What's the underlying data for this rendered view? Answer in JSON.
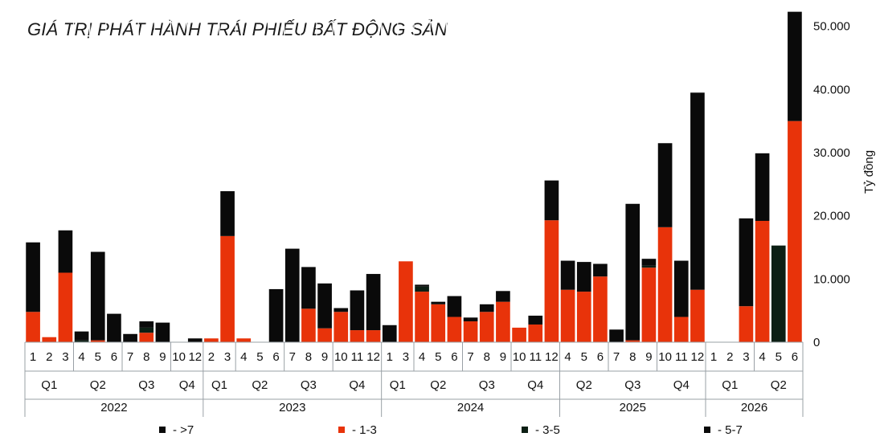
{
  "chart_data": {
    "type": "bar",
    "stacked": true,
    "title": "GIÁ TRỊ PHÁT HÀNH TRÁI PHIẾU BẤT ĐỘNG SẢN",
    "ylabel": "Tỷ đồng",
    "ylim": [
      0,
      52000
    ],
    "yticks": [
      "0",
      "10.000",
      "20.000",
      "30.000",
      "40.000",
      "50.000"
    ],
    "ytick_values": [
      0,
      10000,
      20000,
      30000,
      40000,
      50000
    ],
    "y_axis_side": "right",
    "grid": false,
    "legend_position": "bottom",
    "colors": {
      "gt7": "#0a0a0a",
      "1_3": "#e8330a",
      "3_5": "#0c1f14",
      "5_7": "#0a0a0a",
      "separator": "#a8d0a8"
    },
    "categories": [
      "1",
      "2",
      "3",
      "4",
      "5",
      "6",
      "7",
      "8",
      "9",
      "10",
      "12",
      "2",
      "3",
      "4",
      "5",
      "6",
      "7",
      "8",
      "9",
      "10",
      "11",
      "12",
      "1",
      "3",
      "4",
      "5",
      "6",
      "7",
      "8",
      "9",
      "10",
      "11",
      "12",
      "4",
      "5",
      "6",
      "7",
      "8",
      "9",
      "10",
      "11",
      "12",
      "1",
      "2",
      "3",
      "4",
      "5",
      "6"
    ],
    "quarters": [
      {
        "label": "Q1",
        "n": 3
      },
      {
        "label": "Q2",
        "n": 3
      },
      {
        "label": "Q3",
        "n": 3
      },
      {
        "label": "Q4",
        "n": 2
      },
      {
        "label": "Q1",
        "n": 2
      },
      {
        "label": "Q2",
        "n": 3
      },
      {
        "label": "Q3",
        "n": 3
      },
      {
        "label": "Q4",
        "n": 3
      },
      {
        "label": "Q1",
        "n": 2
      },
      {
        "label": "Q2",
        "n": 3
      },
      {
        "label": "Q3",
        "n": 3
      },
      {
        "label": "Q4",
        "n": 3
      },
      {
        "label": "Q2",
        "n": 3
      },
      {
        "label": "Q3",
        "n": 3
      },
      {
        "label": "Q4",
        "n": 3
      },
      {
        "label": "Q1",
        "n": 3
      },
      {
        "label": "Q2",
        "n": 3
      }
    ],
    "years": [
      {
        "label": "2022",
        "n": 11
      },
      {
        "label": "2023",
        "n": 11
      },
      {
        "label": "2024",
        "n": 11
      },
      {
        "label": "2025",
        "n": 9
      },
      {
        "label": "2026",
        "n": 6
      }
    ],
    "series": [
      {
        "name": "- >7",
        "key": "gt7",
        "values": [
          0,
          0,
          0,
          0,
          0,
          0,
          0,
          0,
          0,
          0,
          0,
          0,
          0,
          0,
          0,
          0,
          0,
          0,
          0,
          0,
          0,
          0,
          0,
          0,
          0,
          0,
          0,
          0,
          0,
          0,
          0,
          0,
          0,
          0,
          0,
          0,
          0,
          0,
          0,
          0,
          0,
          0,
          0,
          0,
          0,
          0,
          0,
          0
        ]
      },
      {
        "name": "- 1-3",
        "key": "1_3",
        "values": [
          4800,
          800,
          11000,
          0,
          300,
          0,
          0,
          1500,
          0,
          0,
          0,
          600,
          16800,
          600,
          0,
          0,
          0,
          5300,
          2200,
          4800,
          1900,
          1900,
          0,
          12800,
          8000,
          6000,
          4000,
          3300,
          4800,
          6400,
          2300,
          2800,
          19300,
          8300,
          8000,
          10400,
          0,
          300,
          11800,
          18200,
          4000,
          8300,
          0,
          0,
          5700,
          19200,
          0,
          35000
        ]
      },
      {
        "name": "- 3-5",
        "key": "3_5",
        "values": [
          0,
          0,
          0,
          300,
          0,
          0,
          0,
          800,
          0,
          0,
          0,
          0,
          0,
          0,
          0,
          0,
          0,
          0,
          0,
          0,
          0,
          0,
          0,
          0,
          800,
          0,
          0,
          0,
          0,
          0,
          0,
          0,
          0,
          0,
          0,
          0,
          0,
          0,
          300,
          0,
          0,
          0,
          0,
          0,
          0,
          0,
          15300,
          0
        ]
      },
      {
        "name": "- 5-7",
        "key": "5_7",
        "values": [
          11000,
          0,
          6700,
          1400,
          14000,
          4500,
          1300,
          1000,
          3100,
          0,
          600,
          0,
          7100,
          0,
          0,
          8400,
          14800,
          6600,
          7100,
          600,
          6300,
          8900,
          2700,
          0,
          300,
          400,
          3300,
          600,
          1200,
          1700,
          0,
          1400,
          6300,
          4600,
          4700,
          2000,
          2000,
          21600,
          1100,
          13300,
          8900,
          31200,
          0,
          0,
          13900,
          10700,
          0,
          17300
        ]
      }
    ]
  },
  "legend": [
    {
      "label": "- >7",
      "color": "#0a0a0a"
    },
    {
      "label": "- 1-3",
      "color": "#e8330a"
    },
    {
      "label": "- 3-5",
      "color": "#0c1f14"
    },
    {
      "label": "- 5-7",
      "color": "#0a0a0a"
    }
  ]
}
